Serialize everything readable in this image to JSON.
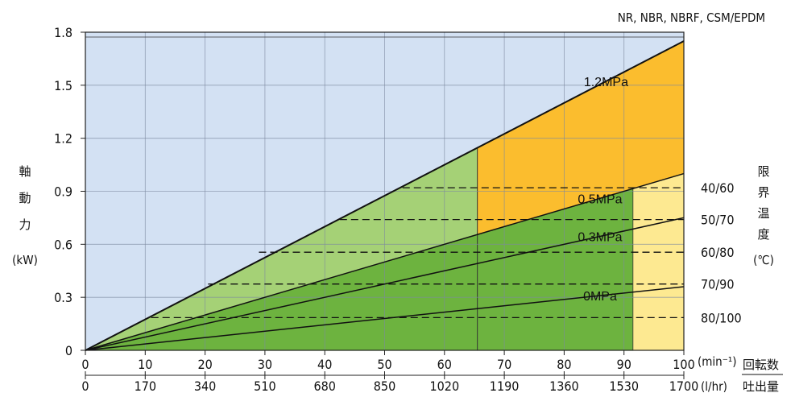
{
  "chart_data": {
    "type": "line",
    "title": "NR, NBR, NBRF, CSM/EPDM",
    "ylabel": {
      "chars": [
        "軸",
        "動",
        "力"
      ],
      "unit": "(kW)"
    },
    "ylim": [
      0,
      1.8
    ],
    "y_ticks": [
      "0",
      "0.3",
      "0.6",
      "0.9",
      "1.2",
      "1.5",
      "1.8"
    ],
    "x_primary": {
      "ticks": [
        0,
        10,
        20,
        30,
        40,
        50,
        60,
        70,
        80,
        90,
        100
      ],
      "range": [
        0,
        100
      ],
      "unit": "(min⁻¹)",
      "label": "回転数"
    },
    "x_secondary": {
      "ticks": [
        "0",
        "170",
        "340",
        "510",
        "680",
        "850",
        "1020",
        "1190",
        "1360",
        "1530",
        "1700"
      ],
      "unit": "(l/hr)",
      "label": "吐出量"
    },
    "grid": true,
    "series": [
      {
        "name": "1.2MPa",
        "x": [
          0,
          100
        ],
        "y": [
          0,
          1.75
        ]
      },
      {
        "name": "0.5MPa",
        "x": [
          0,
          100
        ],
        "y": [
          0,
          1.0
        ]
      },
      {
        "name": "0.3MPa",
        "x": [
          0,
          100
        ],
        "y": [
          0,
          0.75
        ]
      },
      {
        "name": "0MPa",
        "x": [
          0,
          100
        ],
        "y": [
          0,
          0.36
        ]
      }
    ],
    "regions": {
      "background_color": "#d3e1f3",
      "light_green_color": "#a5d176",
      "orange_color": "#fbbd2e",
      "dark_green_color": "#6db33f",
      "yellow_color": "#fde991",
      "boundary_x_1": 65.5,
      "boundary_x_2": 91.5
    },
    "temperature_limits": {
      "label_chars": [
        "限",
        "界",
        "温",
        "度"
      ],
      "unit": "(℃)",
      "levels": [
        {
          "label": "40/60",
          "y": 0.92,
          "x_start": 53
        },
        {
          "label": "50/70",
          "y": 0.74,
          "x_start": 42.5
        },
        {
          "label": "60/80",
          "y": 0.555,
          "x_start": 29
        },
        {
          "label": "70/90",
          "y": 0.375,
          "x_start": 20.5
        },
        {
          "label": "80/100",
          "y": 0.185,
          "x_start": 11
        }
      ]
    }
  }
}
